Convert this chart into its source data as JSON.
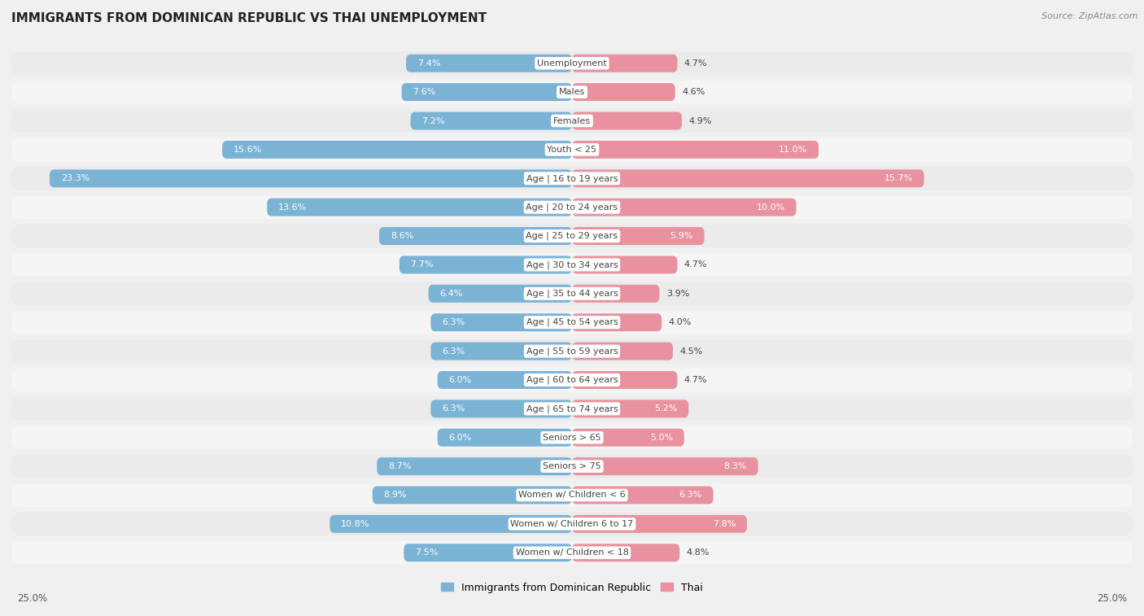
{
  "title": "IMMIGRANTS FROM DOMINICAN REPUBLIC VS THAI UNEMPLOYMENT",
  "source": "Source: ZipAtlas.com",
  "categories": [
    "Unemployment",
    "Males",
    "Females",
    "Youth < 25",
    "Age | 16 to 19 years",
    "Age | 20 to 24 years",
    "Age | 25 to 29 years",
    "Age | 30 to 34 years",
    "Age | 35 to 44 years",
    "Age | 45 to 54 years",
    "Age | 55 to 59 years",
    "Age | 60 to 64 years",
    "Age | 65 to 74 years",
    "Seniors > 65",
    "Seniors > 75",
    "Women w/ Children < 6",
    "Women w/ Children 6 to 17",
    "Women w/ Children < 18"
  ],
  "left_values": [
    7.4,
    7.6,
    7.2,
    15.6,
    23.3,
    13.6,
    8.6,
    7.7,
    6.4,
    6.3,
    6.3,
    6.0,
    6.3,
    6.0,
    8.7,
    8.9,
    10.8,
    7.5
  ],
  "right_values": [
    4.7,
    4.6,
    4.9,
    11.0,
    15.7,
    10.0,
    5.9,
    4.7,
    3.9,
    4.0,
    4.5,
    4.7,
    5.2,
    5.0,
    8.3,
    6.3,
    7.8,
    4.8
  ],
  "left_color": "#7ab3d4",
  "right_color": "#e8929f",
  "left_label": "Immigrants from Dominican Republic",
  "right_label": "Thai",
  "axis_max": 25.0,
  "row_color_even": "#ebebeb",
  "row_color_odd": "#f5f5f5",
  "bg_color": "#f0f0f0",
  "title_fontsize": 11,
  "source_fontsize": 8,
  "value_fontsize": 8,
  "category_fontsize": 8,
  "legend_fontsize": 9
}
